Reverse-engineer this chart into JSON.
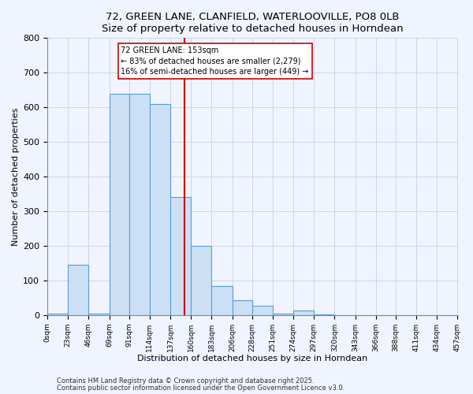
{
  "title": "72, GREEN LANE, CLANFIELD, WATERLOOVILLE, PO8 0LB",
  "subtitle": "Size of property relative to detached houses in Horndean",
  "xlabel": "Distribution of detached houses by size in Horndean",
  "ylabel": "Number of detached properties",
  "bar_edges": [
    0,
    23,
    46,
    69,
    91,
    114,
    137,
    160,
    183,
    206,
    228,
    251,
    274,
    297,
    320,
    343,
    366,
    388,
    411,
    434,
    457
  ],
  "bar_heights": [
    5,
    145,
    5,
    640,
    640,
    610,
    340,
    200,
    83,
    42,
    27,
    5,
    12,
    2,
    0,
    0,
    0,
    0,
    0,
    0
  ],
  "bar_color": "#cce0f5",
  "bar_edgecolor": "#5b9bd5",
  "property_size": 153,
  "vline_color": "#cc0000",
  "annotation_line1": "72 GREEN LANE: 153sqm",
  "annotation_line2": "← 83% of detached houses are smaller (2,279)",
  "annotation_line3": "16% of semi-detached houses are larger (449) →",
  "annotation_box_edgecolor": "#cc0000",
  "annotation_box_facecolor": "#ffffff",
  "ylim": [
    0,
    800
  ],
  "yticks": [
    0,
    100,
    200,
    300,
    400,
    500,
    600,
    700,
    800
  ],
  "tick_labels": [
    "0sqm",
    "23sqm",
    "46sqm",
    "69sqm",
    "91sqm",
    "114sqm",
    "137sqm",
    "160sqm",
    "183sqm",
    "206sqm",
    "228sqm",
    "251sqm",
    "274sqm",
    "297sqm",
    "320sqm",
    "343sqm",
    "366sqm",
    "388sqm",
    "411sqm",
    "434sqm",
    "457sqm"
  ],
  "footer1": "Contains HM Land Registry data © Crown copyright and database right 2025.",
  "footer2": "Contains public sector information licensed under the Open Government Licence v3.0.",
  "bg_color": "#f0f4ff",
  "grid_color": "#c8d0e0"
}
